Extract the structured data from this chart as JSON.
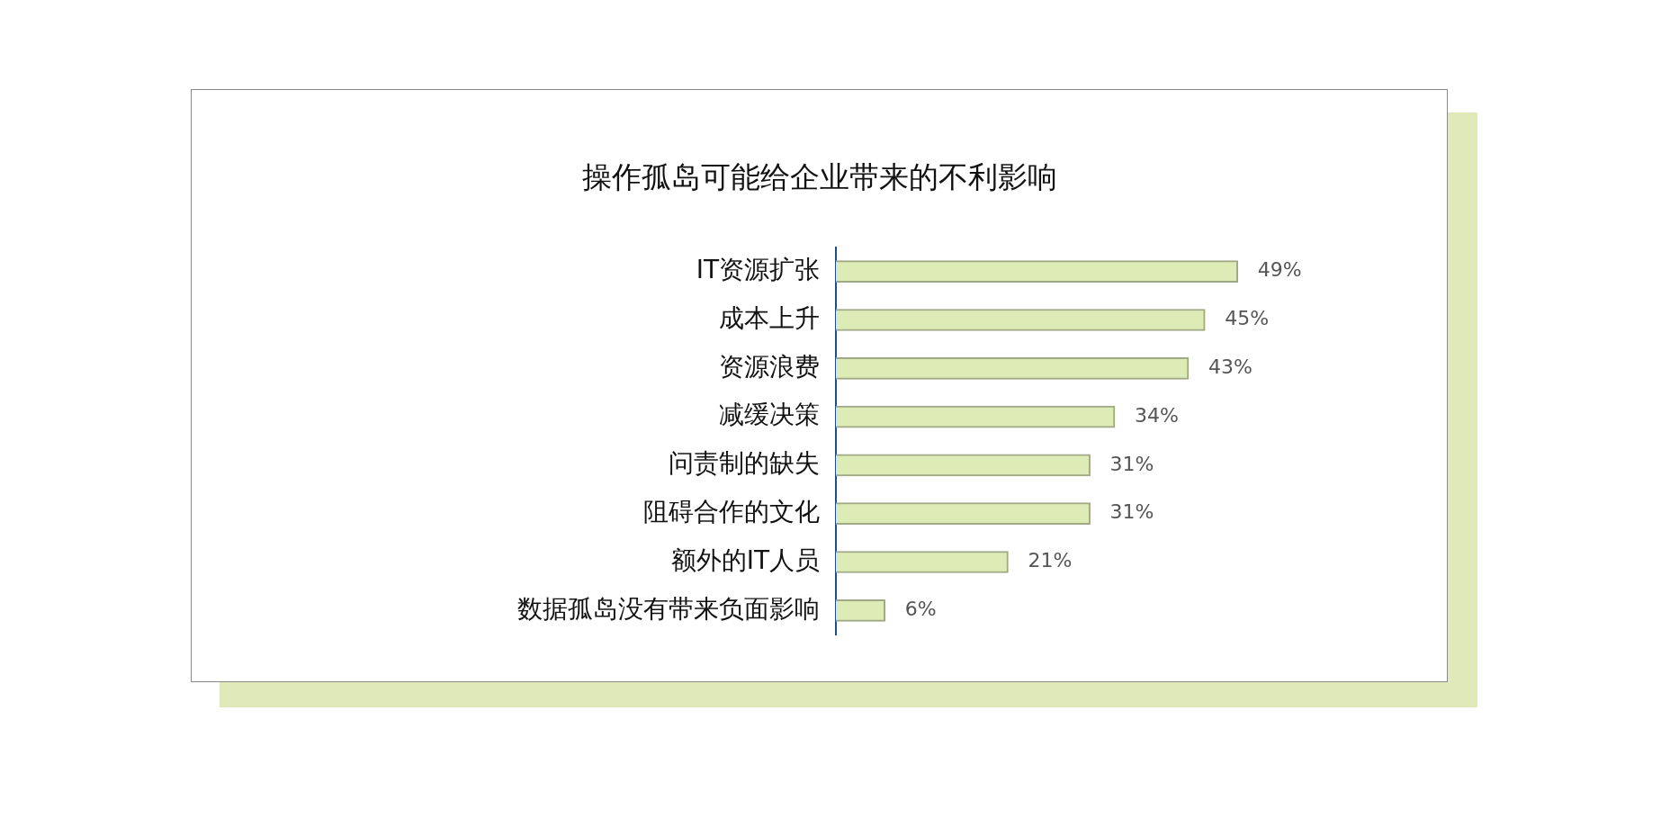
{
  "chart_data": {
    "type": "bar",
    "orientation": "horizontal",
    "title": "操作孤岛可能给企业带来的不利影响",
    "categories": [
      "IT资源扩张",
      "成本上升",
      "资源浪费",
      "减缓决策",
      "问责制的缺失",
      "阻碍合作的文化",
      "额外的IT人员",
      "数据孤岛没有带来负面影响"
    ],
    "values": [
      49,
      45,
      43,
      34,
      31,
      31,
      21,
      6
    ],
    "value_labels": [
      "49%",
      "45%",
      "43%",
      "34%",
      "31%",
      "31%",
      "21%",
      "6%"
    ],
    "color": "#ddebb7",
    "tick_labels": "y",
    "legend": false
  }
}
